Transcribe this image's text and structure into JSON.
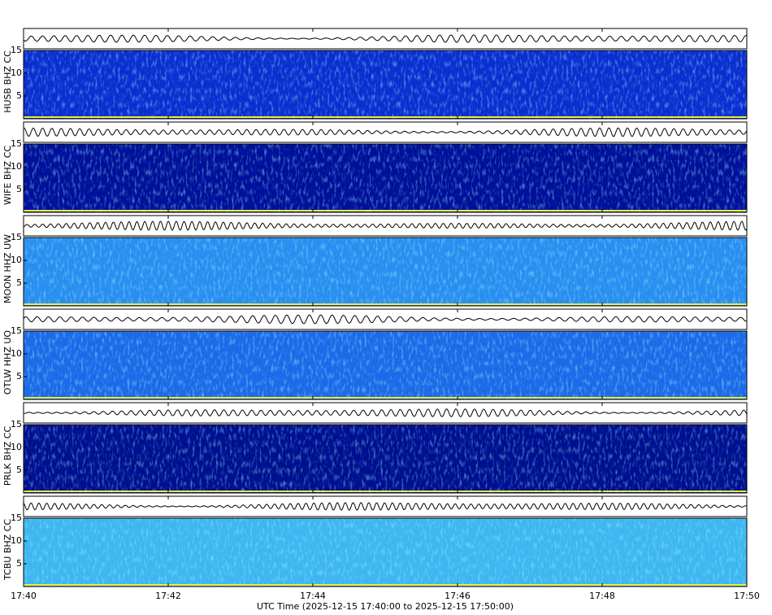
{
  "chart_data": {
    "type": "spectrogram",
    "xlabel": "UTC Time (2025-12-15 17:40:00 to 2025-12-15 17:50:00)",
    "xticks": [
      "17:40",
      "17:42",
      "17:44",
      "17:46",
      "17:48",
      "17:50"
    ],
    "panels": [
      {
        "ylabel": "HUSB BHZ CC",
        "ylim": [
          0,
          15
        ],
        "yticks": [
          5,
          10,
          15
        ],
        "color": "#0c2ed0"
      },
      {
        "ylabel": "WIFE BHZ CC",
        "ylim": [
          0,
          15
        ],
        "yticks": [
          5,
          10,
          15
        ],
        "color": "#00109a"
      },
      {
        "ylabel": "MOON HHZ UW",
        "ylim": [
          0,
          15
        ],
        "yticks": [
          5,
          10,
          15
        ],
        "color": "#2a8ef0"
      },
      {
        "ylabel": "OTLW HHZ UO",
        "ylim": [
          0,
          15
        ],
        "yticks": [
          5,
          10,
          15
        ],
        "color": "#1c6ae8"
      },
      {
        "ylabel": "PRLK BHZ CC",
        "ylim": [
          0,
          15
        ],
        "yticks": [
          5,
          10,
          15
        ],
        "color": "#000f90"
      },
      {
        "ylabel": "TCBU BHZ CC",
        "ylim": [
          0,
          15
        ],
        "yticks": [
          5,
          10,
          15
        ],
        "color": "#3fb6f0"
      }
    ]
  }
}
